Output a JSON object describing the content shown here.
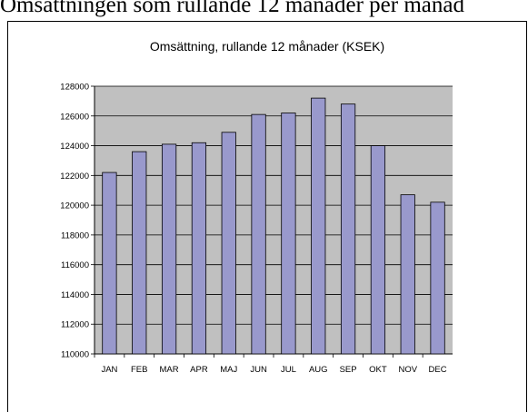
{
  "page": {
    "top_text": "Omsättningen som rullande 12 månader per månad"
  },
  "chart_data": {
    "type": "bar",
    "title": "Omsättning, rullande 12 månader (KSEK)",
    "xlabel": "",
    "ylabel": "",
    "categories": [
      "JAN",
      "FEB",
      "MAR",
      "APR",
      "MAJ",
      "JUN",
      "JUL",
      "AUG",
      "SEP",
      "OKT",
      "NOV",
      "DEC"
    ],
    "values": [
      122200,
      123600,
      124100,
      124200,
      124900,
      126100,
      126200,
      127200,
      126800,
      124000,
      120700,
      120200
    ],
    "ylim": [
      110000,
      128000
    ],
    "yticks": [
      110000,
      112000,
      114000,
      116000,
      118000,
      120000,
      122000,
      124000,
      126000,
      128000
    ],
    "grid": true,
    "legend": "none",
    "colors": {
      "bar_fill": "#9999cc",
      "bar_stroke": "#000000",
      "plot_bg": "#c0c0c0",
      "grid": "#000000"
    }
  }
}
